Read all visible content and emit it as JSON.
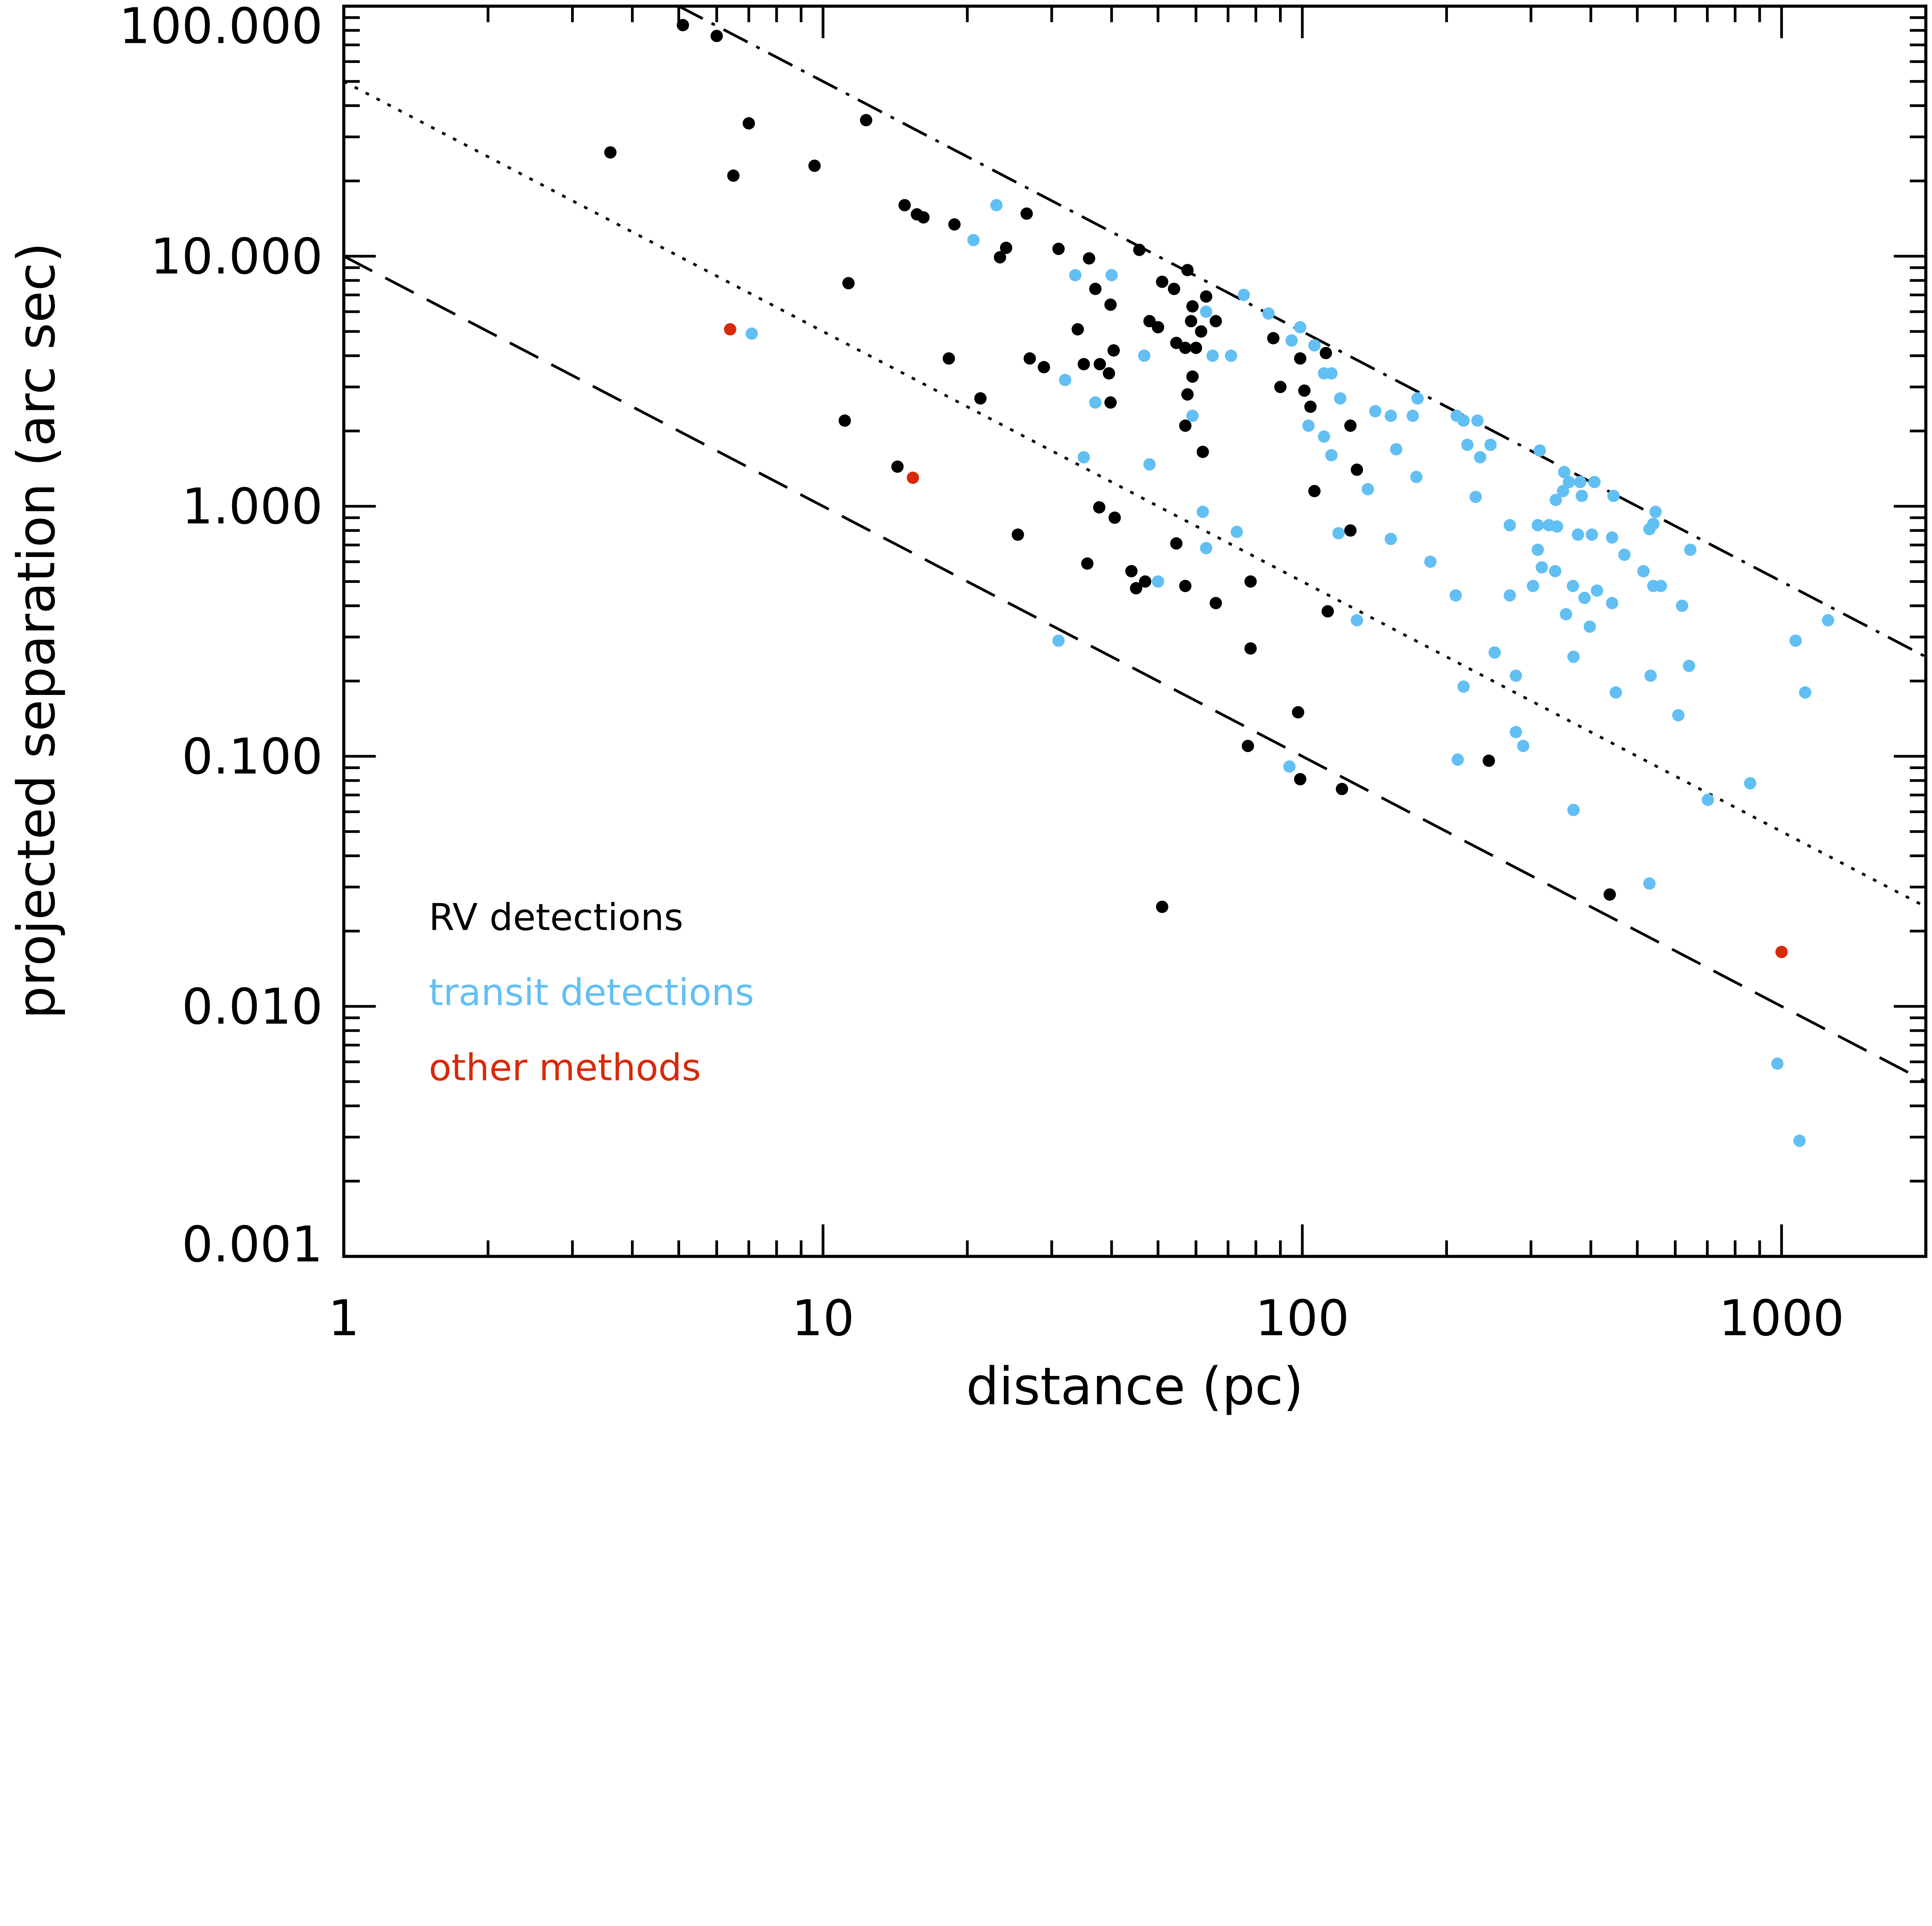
{
  "chart_data": {
    "type": "scatter",
    "title": "",
    "xlabel": "distance (pc)",
    "ylabel": "projected separation (arc sec)",
    "xscale": "log",
    "yscale": "log",
    "xlim": [
      1,
      2000
    ],
    "ylim": [
      0.001,
      100
    ],
    "x_ticks": [
      1,
      10,
      100,
      1000
    ],
    "x_tick_labels": [
      "1",
      "10",
      "100",
      "1000"
    ],
    "y_ticks": [
      0.001,
      0.01,
      0.1,
      1,
      10,
      100
    ],
    "y_tick_labels": [
      "0.001",
      "0.010",
      "0.100",
      "1.000",
      "10.000",
      "100.000"
    ],
    "grid": false,
    "legend_placement": "bottom-left",
    "reference_lines": [
      {
        "style": "dash-dot",
        "relation": "separation = 500 / distance"
      },
      {
        "style": "dotted",
        "relation": "separation = 50 / distance"
      },
      {
        "style": "dashed",
        "relation": "separation = 10 / distance"
      }
    ],
    "series": [
      {
        "name": "RV detections",
        "color": "#000000",
        "points": [
          [
            5.1,
            84
          ],
          [
            6.0,
            76
          ],
          [
            3.6,
            26
          ],
          [
            7.0,
            34
          ],
          [
            6.5,
            21
          ],
          [
            9.6,
            23
          ],
          [
            12.3,
            35
          ],
          [
            14.8,
            16
          ],
          [
            15.7,
            14.7
          ],
          [
            16.2,
            14.3
          ],
          [
            18.8,
            13.4
          ],
          [
            26.6,
            14.8
          ],
          [
            24.1,
            10.8
          ],
          [
            23.4,
            9.9
          ],
          [
            31,
            10.7
          ],
          [
            35.9,
            9.8
          ],
          [
            45.7,
            10.6
          ],
          [
            11.3,
            7.8
          ],
          [
            37,
            7.4
          ],
          [
            39.8,
            6.4
          ],
          [
            51,
            7.9
          ],
          [
            54,
            7.4
          ],
          [
            57.6,
            8.8
          ],
          [
            48,
            5.5
          ],
          [
            50,
            5.2
          ],
          [
            59,
            6.3
          ],
          [
            63,
            6.9
          ],
          [
            66,
            5.5
          ],
          [
            61.5,
            5.0
          ],
          [
            58.6,
            5.5
          ],
          [
            34,
            5.1
          ],
          [
            40.4,
            4.2
          ],
          [
            54.6,
            4.5
          ],
          [
            57,
            4.3
          ],
          [
            60,
            4.3
          ],
          [
            18.3,
            3.9
          ],
          [
            27,
            3.9
          ],
          [
            28.9,
            3.6
          ],
          [
            35,
            3.7
          ],
          [
            37.8,
            3.7
          ],
          [
            39.5,
            3.4
          ],
          [
            59,
            3.3
          ],
          [
            57.6,
            2.8
          ],
          [
            21.3,
            2.7
          ],
          [
            39.8,
            2.6
          ],
          [
            57,
            2.1
          ],
          [
            62,
            1.65
          ],
          [
            11.1,
            2.2
          ],
          [
            14.3,
            1.44
          ],
          [
            37.7,
            0.99
          ],
          [
            40.6,
            0.9
          ],
          [
            25.5,
            0.77
          ],
          [
            54.6,
            0.71
          ],
          [
            35.6,
            0.59
          ],
          [
            44,
            0.55
          ],
          [
            45,
            0.47
          ],
          [
            47,
            0.5
          ],
          [
            57,
            0.48
          ],
          [
            78,
            0.5
          ],
          [
            66,
            0.41
          ],
          [
            78,
            0.27
          ],
          [
            87,
            4.7
          ],
          [
            90,
            3.0
          ],
          [
            99,
            3.9
          ],
          [
            101,
            2.9
          ],
          [
            104,
            2.5
          ],
          [
            112,
            4.1
          ],
          [
            106,
            1.15
          ],
          [
            126,
            2.1
          ],
          [
            130,
            1.4
          ],
          [
            126,
            0.8
          ],
          [
            113,
            0.38
          ],
          [
            77,
            0.11
          ],
          [
            98,
            0.15
          ],
          [
            99,
            0.081
          ],
          [
            121,
            0.074
          ],
          [
            245,
            0.096
          ],
          [
            51,
            0.025
          ],
          [
            438,
            0.028
          ]
        ]
      },
      {
        "name": "transit detections",
        "color": "#62bff4",
        "points": [
          [
            7.1,
            4.9
          ],
          [
            20.6,
            11.6
          ],
          [
            23,
            16
          ],
          [
            33.6,
            8.4
          ],
          [
            40,
            8.4
          ],
          [
            32,
            3.2
          ],
          [
            37,
            2.6
          ],
          [
            35,
            1.57
          ],
          [
            46.8,
            4.0
          ],
          [
            48,
            1.47
          ],
          [
            59,
            2.3
          ],
          [
            62,
            0.95
          ],
          [
            63,
            0.68
          ],
          [
            73,
            0.79
          ],
          [
            50,
            0.5
          ],
          [
            31,
            0.29
          ],
          [
            63,
            6.0
          ],
          [
            65,
            4.0
          ],
          [
            71,
            4.0
          ],
          [
            75.5,
            7.0
          ],
          [
            85,
            5.9
          ],
          [
            95,
            4.6
          ],
          [
            99,
            5.2
          ],
          [
            106,
            4.4
          ],
          [
            111,
            3.4
          ],
          [
            115,
            3.4
          ],
          [
            120,
            2.7
          ],
          [
            103,
            2.1
          ],
          [
            111,
            1.9
          ],
          [
            115,
            1.6
          ],
          [
            119,
            0.78
          ],
          [
            130,
            0.35
          ],
          [
            137,
            1.17
          ],
          [
            142,
            2.4
          ],
          [
            153,
            2.3
          ],
          [
            157,
            1.69
          ],
          [
            153,
            0.74
          ],
          [
            174,
            2.7
          ],
          [
            170,
            2.3
          ],
          [
            173,
            1.31
          ],
          [
            185,
            0.6
          ],
          [
            210,
            2.3
          ],
          [
            217,
            2.2
          ],
          [
            232,
            2.2
          ],
          [
            221,
            1.76
          ],
          [
            235,
            1.57
          ],
          [
            247,
            1.76
          ],
          [
            230,
            1.09
          ],
          [
            209,
            0.44
          ],
          [
            217,
            0.19
          ],
          [
            211,
            0.097
          ],
          [
            252,
            0.26
          ],
          [
            271,
            0.84
          ],
          [
            271,
            0.44
          ],
          [
            279,
            0.21
          ],
          [
            279,
            0.125
          ],
          [
            289,
            0.11
          ],
          [
            310,
            0.84
          ],
          [
            310,
            0.67
          ],
          [
            316,
            0.57
          ],
          [
            303,
            0.48
          ],
          [
            313,
            1.67
          ],
          [
            327,
            0.84
          ],
          [
            340,
            0.83
          ],
          [
            338,
            1.06
          ],
          [
            350,
            1.15
          ],
          [
            352,
            1.37
          ],
          [
            360,
            1.25
          ],
          [
            337,
            0.55
          ],
          [
            355,
            0.37
          ],
          [
            367,
            0.48
          ],
          [
            368,
            0.25
          ],
          [
            368,
            0.061
          ],
          [
            376,
            0.77
          ],
          [
            380,
            1.25
          ],
          [
            383,
            1.1
          ],
          [
            388,
            0.43
          ],
          [
            398,
            0.33
          ],
          [
            402,
            0.77
          ],
          [
            407,
            1.25
          ],
          [
            412,
            0.46
          ],
          [
            446,
            1.1
          ],
          [
            443,
            0.75
          ],
          [
            443,
            0.41
          ],
          [
            451,
            0.18
          ],
          [
            470,
            0.64
          ],
          [
            515,
            0.55
          ],
          [
            530,
            0.81
          ],
          [
            540,
            0.85
          ],
          [
            546,
            0.95
          ],
          [
            540,
            0.48
          ],
          [
            560,
            0.48
          ],
          [
            533,
            0.21
          ],
          [
            530,
            0.031
          ],
          [
            620,
            0.4
          ],
          [
            645,
            0.67
          ],
          [
            641,
            0.23
          ],
          [
            609,
            0.146
          ],
          [
            702,
            0.067
          ],
          [
            860,
            0.078
          ],
          [
            980,
            0.0059
          ],
          [
            1070,
            0.29
          ],
          [
            1120,
            0.18
          ],
          [
            1090,
            0.0029
          ],
          [
            1250,
            0.35
          ],
          [
            94,
            0.091
          ]
        ]
      },
      {
        "name": "other methods",
        "color": "#d8290b",
        "points": [
          [
            6.4,
            5.1
          ],
          [
            15.4,
            1.3
          ],
          [
            1000,
            0.0165
          ]
        ]
      }
    ]
  }
}
